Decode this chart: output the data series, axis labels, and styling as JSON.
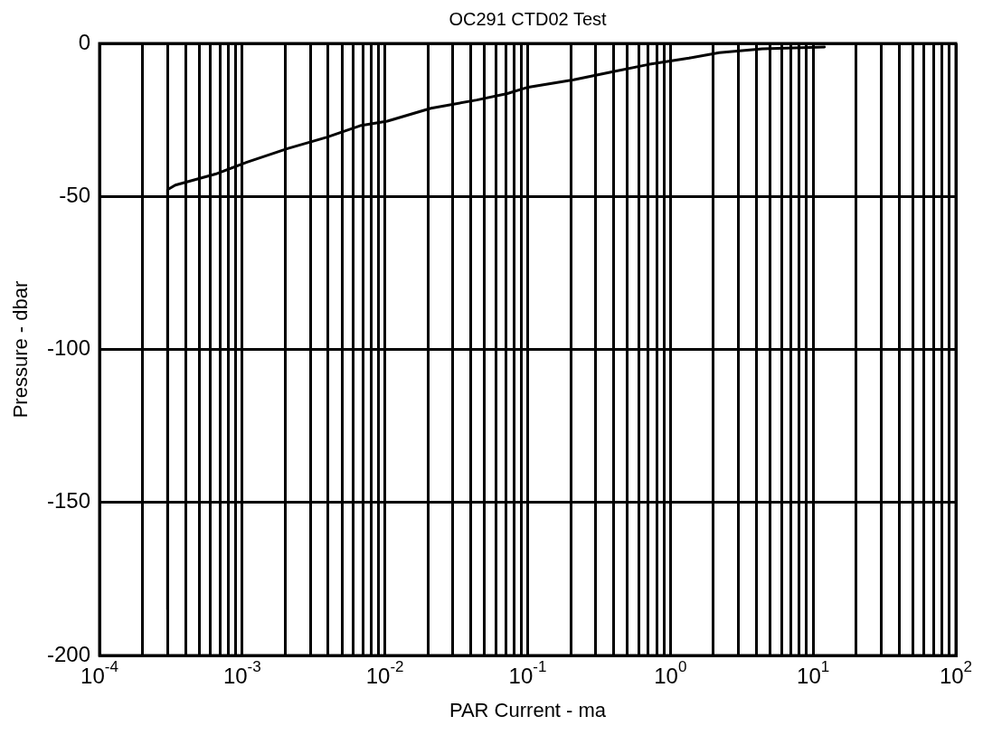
{
  "chart_data": {
    "type": "line",
    "title": "OC291 CTD02 Test",
    "xlabel": "PAR Current - ma",
    "ylabel": "Pressure - dbar",
    "log": "x",
    "grid": true,
    "marker": "none",
    "line_style": "solid",
    "xlim": [
      0.0001,
      100
    ],
    "xticks": [
      {
        "value": 0.0001,
        "label": "10$^{-4}$"
      },
      {
        "value": 0.0002,
        "label": null
      },
      {
        "value": 0.0003,
        "label": null
      },
      {
        "value": 0.0004,
        "label": null
      },
      {
        "value": 0.0005,
        "label": null
      },
      {
        "value": 0.0006,
        "label": null
      },
      {
        "value": 0.0007,
        "label": null
      },
      {
        "value": 0.0008,
        "label": null
      },
      {
        "value": 0.0009,
        "label": null
      },
      {
        "value": 0.001,
        "label": "10$^{-3}$"
      },
      {
        "value": 0.002,
        "label": null
      },
      {
        "value": 0.003,
        "label": null
      },
      {
        "value": 0.004,
        "label": null
      },
      {
        "value": 0.005,
        "label": null
      },
      {
        "value": 0.006,
        "label": null
      },
      {
        "value": 0.007,
        "label": null
      },
      {
        "value": 0.008,
        "label": null
      },
      {
        "value": 0.009,
        "label": null
      },
      {
        "value": 0.01,
        "label": "10$^{-2}$"
      },
      {
        "value": 0.02,
        "label": null
      },
      {
        "value": 0.03,
        "label": null
      },
      {
        "value": 0.04,
        "label": null
      },
      {
        "value": 0.05,
        "label": null
      },
      {
        "value": 0.06,
        "label": null
      },
      {
        "value": 0.07,
        "label": null
      },
      {
        "value": 0.08,
        "label": null
      },
      {
        "value": 0.09,
        "label": null
      },
      {
        "value": 0.1,
        "label": "10$^{-1}$"
      },
      {
        "value": 0.2,
        "label": null
      },
      {
        "value": 0.3,
        "label": null
      },
      {
        "value": 0.4,
        "label": null
      },
      {
        "value": 0.5,
        "label": null
      },
      {
        "value": 0.6,
        "label": null
      },
      {
        "value": 0.7,
        "label": null
      },
      {
        "value": 0.8,
        "label": null
      },
      {
        "value": 0.9,
        "label": null
      },
      {
        "value": 1,
        "label": "10$^{0}$"
      },
      {
        "value": 2,
        "label": null
      },
      {
        "value": 3,
        "label": null
      },
      {
        "value": 4,
        "label": null
      },
      {
        "value": 5,
        "label": null
      },
      {
        "value": 6,
        "label": null
      },
      {
        "value": 7,
        "label": null
      },
      {
        "value": 8,
        "label": null
      },
      {
        "value": 9,
        "label": null
      },
      {
        "value": 10,
        "label": "10$^{1}$"
      },
      {
        "value": 20,
        "label": null
      },
      {
        "value": 30,
        "label": null
      },
      {
        "value": 40,
        "label": null
      },
      {
        "value": 50,
        "label": null
      },
      {
        "value": 60,
        "label": null
      },
      {
        "value": 70,
        "label": null
      },
      {
        "value": 80,
        "label": null
      },
      {
        "value": 90,
        "label": null
      },
      {
        "value": 100,
        "label": "10$^{2}$"
      }
    ],
    "ylim": [
      -200,
      0
    ],
    "yticks": [
      -200,
      -150,
      -100,
      -50,
      0
    ],
    "series": [
      {
        "color": "#000000",
        "x": [
          0.0003,
          0.0003,
          0.00034,
          0.00065,
          0.00108,
          0.0021,
          0.0039,
          0.0067,
          0.0104,
          0.021,
          0.044,
          0.072,
          0.101,
          0.21,
          0.39,
          0.7,
          1.35,
          2.2,
          4.4,
          12
        ],
        "values": [
          -185,
          -47.8,
          -46.3,
          -42.7,
          -38.8,
          -34.3,
          -30.7,
          -26.9,
          -25.4,
          -21.2,
          -18.5,
          -16.4,
          -14.3,
          -11.9,
          -9.3,
          -6.9,
          -4.8,
          -3,
          -1.8,
          -1.2
        ]
      }
    ]
  }
}
